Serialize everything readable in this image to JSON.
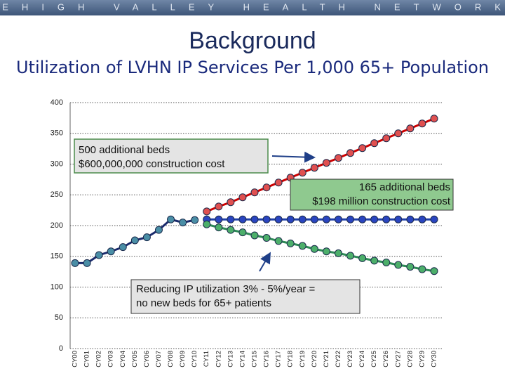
{
  "header": "LEHIGH VALLEY HEALTH NETWORK",
  "chart_data": {
    "type": "line",
    "title": "Background",
    "subtitle": "Utilization of LVHN IP Services Per 1,000 65+ Population",
    "categories": [
      "CY00",
      "CY01",
      "CY02",
      "CY03",
      "CY04",
      "CY05",
      "CY06",
      "CY07",
      "CY08",
      "CY09",
      "CY10",
      "CY11",
      "CY12",
      "CY13",
      "CY14",
      "CY15",
      "CY16",
      "CY17",
      "CY18",
      "CY19",
      "CY20",
      "CY21",
      "CY22",
      "CY23",
      "CY24",
      "CY25",
      "CY26",
      "CY27",
      "CY28",
      "CY29",
      "CY30"
    ],
    "ylim": [
      0,
      400
    ],
    "yticks": [
      0,
      50,
      100,
      150,
      200,
      250,
      300,
      350,
      400
    ],
    "grid": true,
    "series": [
      {
        "color": "#1a2a6c",
        "marker_color": "#4a8ea6",
        "values": [
          139,
          139,
          152,
          158,
          165,
          176,
          181,
          193,
          210,
          205,
          209,
          null,
          null,
          null,
          null,
          null,
          null,
          null,
          null,
          null,
          null,
          null,
          null,
          null,
          null,
          null,
          null,
          null,
          null,
          null,
          null
        ]
      },
      {
        "color": "#cc0000",
        "marker_color": "#e05050",
        "values": [
          null,
          null,
          null,
          null,
          null,
          null,
          null,
          null,
          null,
          null,
          null,
          223,
          231,
          238,
          246,
          254,
          262,
          270,
          278,
          286,
          294,
          302,
          310,
          318,
          326,
          334,
          342,
          350,
          358,
          366,
          374
        ]
      },
      {
        "color": "#1f3fa8",
        "marker_color": "#2a45c0",
        "values": [
          null,
          null,
          null,
          null,
          null,
          null,
          null,
          null,
          null,
          null,
          null,
          210,
          210,
          210,
          210,
          210,
          210,
          210,
          210,
          210,
          210,
          210,
          210,
          210,
          210,
          210,
          210,
          210,
          210,
          210,
          210
        ]
      },
      {
        "color": "#2e8b57",
        "marker_color": "#4caf6a",
        "values": [
          null,
          null,
          null,
          null,
          null,
          null,
          null,
          null,
          null,
          null,
          null,
          202,
          197,
          193,
          189,
          184,
          180,
          175,
          171,
          167,
          162,
          158,
          155,
          151,
          147,
          143,
          140,
          136,
          133,
          129,
          126
        ]
      }
    ],
    "annotations": [
      {
        "lines": [
          "500 additional beds",
          "$600,000,000 construction cost"
        ]
      },
      {
        "lines": [
          "165 additional beds",
          "$198 million construction cost"
        ]
      },
      {
        "lines": [
          "Reducing IP utilization 3% - 5%/year =",
          "no new beds for 65+ patients"
        ]
      }
    ]
  }
}
